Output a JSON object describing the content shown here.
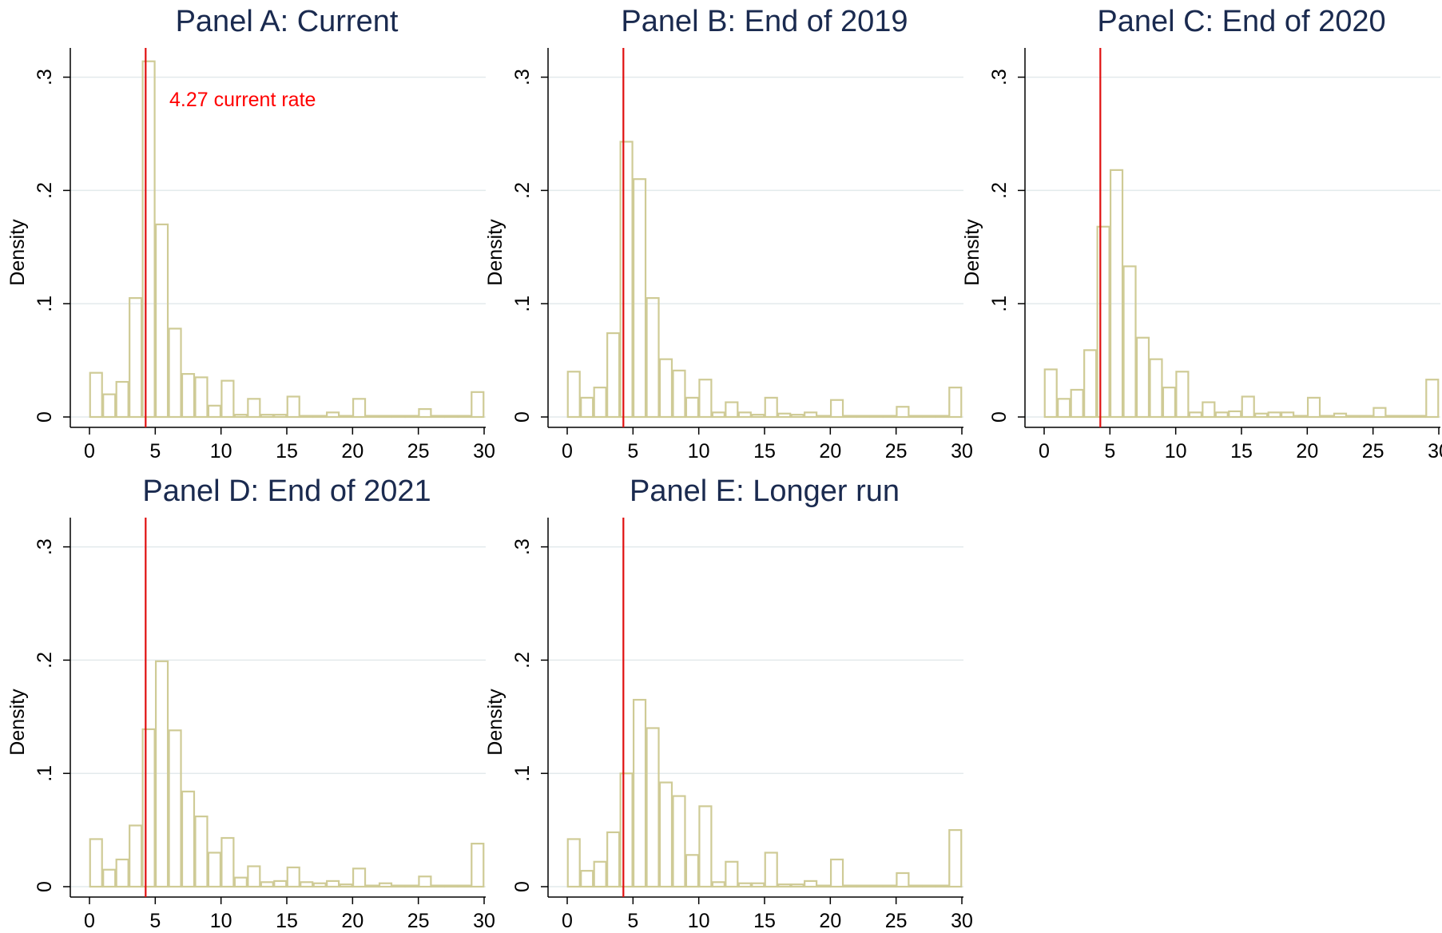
{
  "colors": {
    "bar": "#cfcb96",
    "grid": "#e3eaec",
    "refline": "#e01010",
    "title": "#1a2a4f",
    "annotation": "#ff0000"
  },
  "chart_data": [
    {
      "type": "bar",
      "title": "Panel A: Current",
      "ylabel": "Density",
      "xlim": [
        0,
        30
      ],
      "ylim": [
        0,
        0.3
      ],
      "xticks": [
        "0",
        "5",
        "10",
        "15",
        "20",
        "25",
        "30"
      ],
      "yticks": [
        "0",
        ".1",
        ".2",
        ".3"
      ],
      "grid": true,
      "bin_width": 1,
      "x": [
        0.5,
        1.5,
        2.5,
        3.5,
        4.5,
        5.5,
        6.5,
        7.5,
        8.5,
        9.5,
        10.5,
        11.5,
        12.5,
        13.5,
        14.5,
        15.5,
        16.5,
        17.5,
        18.5,
        19.5,
        20.5,
        21.5,
        22.5,
        23.5,
        24.5,
        25.5,
        26.5,
        27.5,
        28.5,
        29.5
      ],
      "values": [
        0.039,
        0.02,
        0.031,
        0.105,
        0.314,
        0.17,
        0.078,
        0.038,
        0.035,
        0.01,
        0.032,
        0.002,
        0.016,
        0.002,
        0.002,
        0.018,
        0.001,
        0.001,
        0.004,
        0.001,
        0.016,
        0.001,
        0.001,
        0.001,
        0.001,
        0.007,
        0.001,
        0.001,
        0.001,
        0.022
      ],
      "reference_line": {
        "x": 4.27
      },
      "annotation": "4.27 current rate"
    },
    {
      "type": "bar",
      "title": "Panel B: End of 2019",
      "ylabel": "Density",
      "xlim": [
        0,
        30
      ],
      "ylim": [
        0,
        0.3
      ],
      "xticks": [
        "0",
        "5",
        "10",
        "15",
        "20",
        "25",
        "30"
      ],
      "yticks": [
        "0",
        ".1",
        ".2",
        ".3"
      ],
      "grid": true,
      "bin_width": 1,
      "x": [
        0.5,
        1.5,
        2.5,
        3.5,
        4.5,
        5.5,
        6.5,
        7.5,
        8.5,
        9.5,
        10.5,
        11.5,
        12.5,
        13.5,
        14.5,
        15.5,
        16.5,
        17.5,
        18.5,
        19.5,
        20.5,
        21.5,
        22.5,
        23.5,
        24.5,
        25.5,
        26.5,
        27.5,
        28.5,
        29.5
      ],
      "values": [
        0.04,
        0.017,
        0.026,
        0.074,
        0.243,
        0.21,
        0.105,
        0.051,
        0.041,
        0.017,
        0.033,
        0.004,
        0.013,
        0.004,
        0.002,
        0.017,
        0.003,
        0.002,
        0.004,
        0.001,
        0.015,
        0.001,
        0.001,
        0.001,
        0.001,
        0.009,
        0.001,
        0.001,
        0.001,
        0.026
      ],
      "reference_line": {
        "x": 4.27
      }
    },
    {
      "type": "bar",
      "title": "Panel C: End of 2020",
      "ylabel": "Density",
      "xlim": [
        0,
        30
      ],
      "ylim": [
        0,
        0.3
      ],
      "xticks": [
        "0",
        "5",
        "10",
        "15",
        "20",
        "25",
        "30"
      ],
      "yticks": [
        "0",
        ".1",
        ".2",
        ".3"
      ],
      "grid": true,
      "bin_width": 1,
      "x": [
        0.5,
        1.5,
        2.5,
        3.5,
        4.5,
        5.5,
        6.5,
        7.5,
        8.5,
        9.5,
        10.5,
        11.5,
        12.5,
        13.5,
        14.5,
        15.5,
        16.5,
        17.5,
        18.5,
        19.5,
        20.5,
        21.5,
        22.5,
        23.5,
        24.5,
        25.5,
        26.5,
        27.5,
        28.5,
        29.5
      ],
      "values": [
        0.042,
        0.016,
        0.024,
        0.059,
        0.168,
        0.218,
        0.133,
        0.07,
        0.051,
        0.026,
        0.04,
        0.004,
        0.013,
        0.004,
        0.005,
        0.018,
        0.003,
        0.004,
        0.004,
        0.001,
        0.017,
        0.001,
        0.003,
        0.001,
        0.001,
        0.008,
        0.001,
        0.001,
        0.001,
        0.033
      ],
      "reference_line": {
        "x": 4.27
      }
    },
    {
      "type": "bar",
      "title": "Panel D: End of 2021",
      "ylabel": "Density",
      "xlim": [
        0,
        30
      ],
      "ylim": [
        0,
        0.3
      ],
      "xticks": [
        "0",
        "5",
        "10",
        "15",
        "20",
        "25",
        "30"
      ],
      "yticks": [
        "0",
        ".1",
        ".2",
        ".3"
      ],
      "grid": true,
      "bin_width": 1,
      "x": [
        0.5,
        1.5,
        2.5,
        3.5,
        4.5,
        5.5,
        6.5,
        7.5,
        8.5,
        9.5,
        10.5,
        11.5,
        12.5,
        13.5,
        14.5,
        15.5,
        16.5,
        17.5,
        18.5,
        19.5,
        20.5,
        21.5,
        22.5,
        23.5,
        24.5,
        25.5,
        26.5,
        27.5,
        28.5,
        29.5
      ],
      "values": [
        0.042,
        0.015,
        0.024,
        0.054,
        0.139,
        0.199,
        0.138,
        0.084,
        0.062,
        0.03,
        0.043,
        0.008,
        0.018,
        0.004,
        0.005,
        0.017,
        0.004,
        0.003,
        0.005,
        0.002,
        0.016,
        0.001,
        0.003,
        0.001,
        0.001,
        0.009,
        0.001,
        0.001,
        0.001,
        0.038
      ],
      "reference_line": {
        "x": 4.27
      }
    },
    {
      "type": "bar",
      "title": "Panel E: Longer run",
      "ylabel": "Density",
      "xlim": [
        0,
        30
      ],
      "ylim": [
        0,
        0.3
      ],
      "xticks": [
        "0",
        "5",
        "10",
        "15",
        "20",
        "25",
        "30"
      ],
      "yticks": [
        "0",
        ".1",
        ".2",
        ".3"
      ],
      "grid": true,
      "bin_width": 1,
      "x": [
        0.5,
        1.5,
        2.5,
        3.5,
        4.5,
        5.5,
        6.5,
        7.5,
        8.5,
        9.5,
        10.5,
        11.5,
        12.5,
        13.5,
        14.5,
        15.5,
        16.5,
        17.5,
        18.5,
        19.5,
        20.5,
        21.5,
        22.5,
        23.5,
        24.5,
        25.5,
        26.5,
        27.5,
        28.5,
        29.5
      ],
      "values": [
        0.042,
        0.014,
        0.022,
        0.048,
        0.1,
        0.165,
        0.14,
        0.092,
        0.08,
        0.028,
        0.071,
        0.004,
        0.022,
        0.003,
        0.003,
        0.03,
        0.002,
        0.002,
        0.005,
        0.001,
        0.024,
        0.001,
        0.001,
        0.001,
        0.001,
        0.012,
        0.001,
        0.001,
        0.001,
        0.05
      ],
      "reference_line": {
        "x": 4.27
      }
    }
  ]
}
